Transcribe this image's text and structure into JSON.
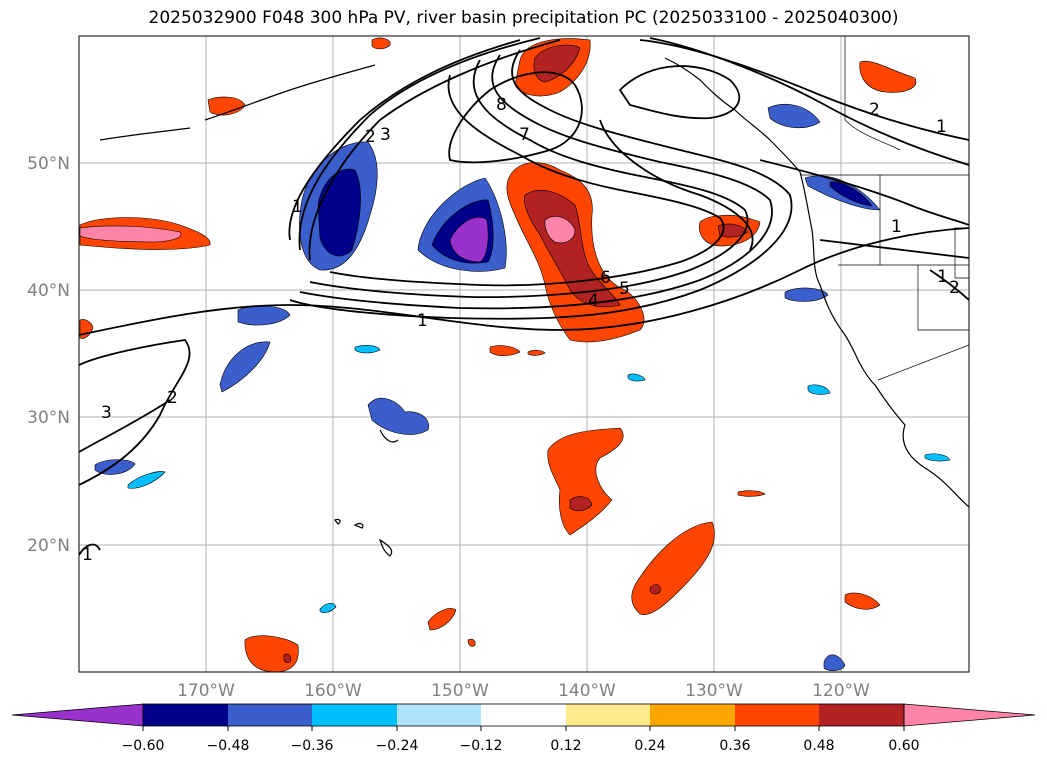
{
  "title": "2025032900 F048 300 hPa PV, river basin precipitation PC (2025033100 - 2025040300)",
  "map": {
    "lat_labels": [
      "50°N",
      "40°N",
      "30°N",
      "20°N"
    ],
    "lon_labels": [
      "170°W",
      "160°W",
      "150°W",
      "140°W",
      "130°W",
      "120°W"
    ],
    "contour_labels": [
      "8",
      "7",
      "2",
      "3",
      "1",
      "1",
      "6",
      "5",
      "4",
      "1",
      "2",
      "3",
      "1",
      "2",
      "1",
      "1",
      "2"
    ]
  },
  "colorbar": {
    "ticks": [
      "−0.60",
      "−0.48",
      "−0.36",
      "−0.24",
      "−0.12",
      "0.12",
      "0.24",
      "0.36",
      "0.48",
      "0.60"
    ],
    "colors": [
      "#9932cc",
      "#00008b",
      "#3a5fcd",
      "#00bfff",
      "#aee3fb",
      "#ffffff",
      "#ffea8c",
      "#ffa500",
      "#ff4500",
      "#b22222",
      "#ff84a8"
    ]
  }
}
